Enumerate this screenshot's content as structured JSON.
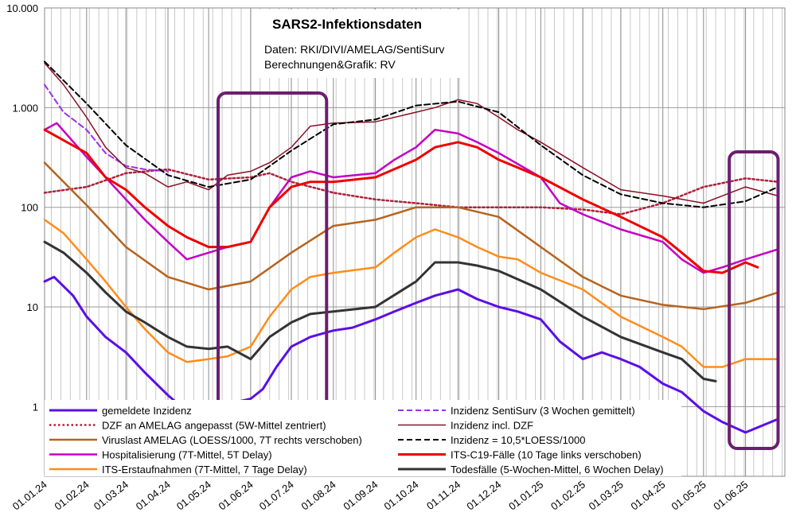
{
  "chart_data": {
    "type": "line",
    "title": "SARS2-Infektionsdaten",
    "subtitle_lines": [
      "Daten: RKI/DIVI/AMELAG/SentiSurv",
      "Berechnungen&Grafik: RV"
    ],
    "y_scale": "log",
    "ylim": [
      0.2,
      10000
    ],
    "y_ticks": [
      1,
      10,
      100,
      1000,
      10000
    ],
    "y_tick_labels": [
      "1",
      "10",
      "100",
      "1.000",
      "10.000"
    ],
    "xlim": [
      "2024-01-01",
      "2025-06-30"
    ],
    "x_ticks": [
      "2024-01-01",
      "2024-02-01",
      "2024-03-01",
      "2024-04-01",
      "2024-05-01",
      "2024-06-01",
      "2024-07-01",
      "2024-08-01",
      "2024-09-01",
      "2024-10-01",
      "2024-11-01",
      "2024-12-01",
      "2025-01-01",
      "2025-02-01",
      "2025-03-01",
      "2025-04-01",
      "2025-05-01",
      "2025-06-01"
    ],
    "x_tick_labels": [
      "01.01.24",
      "01.02.24",
      "01.03.24",
      "01.04.24",
      "01.05.24",
      "01.06.24",
      "01.07.24",
      "01.08.24",
      "01.09.24",
      "01.10.24",
      "01.11.24",
      "01.12.24",
      "01.01.25",
      "01.02.25",
      "01.03.25",
      "01.04.25",
      "01.05.25",
      "01.06.25"
    ],
    "grid": "vertical weekly lines, horizontal at decades",
    "legend_placement": "bottom, inside plot, two columns",
    "highlight_boxes": [
      {
        "x": [
          "2024-05-08",
          "2024-07-27"
        ],
        "y": [
          0.85,
          1400
        ],
        "color": "#6B1E6E"
      },
      {
        "x": [
          "2025-05-20",
          "2025-06-25"
        ],
        "y": [
          0.38,
          360
        ],
        "color": "#6B1E6E"
      }
    ],
    "series": [
      {
        "name": "gemeldete Inzidenz",
        "color": "#5B0FE6",
        "style": "solid",
        "width": 3,
        "x": [
          "2024-01-01",
          "2024-01-08",
          "2024-01-22",
          "2024-02-01",
          "2024-02-15",
          "2024-03-01",
          "2024-03-15",
          "2024-04-01",
          "2024-04-15",
          "2024-05-01",
          "2024-05-10",
          "2024-05-20",
          "2024-06-01",
          "2024-06-10",
          "2024-06-20",
          "2024-07-01",
          "2024-07-15",
          "2024-08-01",
          "2024-08-15",
          "2024-09-01",
          "2024-09-15",
          "2024-10-01",
          "2024-10-15",
          "2024-11-01",
          "2024-11-15",
          "2024-12-01",
          "2024-12-15",
          "2025-01-01",
          "2025-01-15",
          "2025-02-01",
          "2025-02-15",
          "2025-03-01",
          "2025-03-15",
          "2025-04-01",
          "2025-04-15",
          "2025-05-01",
          "2025-05-15",
          "2025-06-01",
          "2025-06-25"
        ],
        "y": [
          18,
          20,
          13,
          8,
          5,
          3.5,
          2.2,
          1.3,
          0.9,
          0.7,
          0.95,
          1.1,
          1.2,
          1.5,
          2.5,
          4,
          5,
          5.8,
          6.2,
          7.5,
          9,
          11,
          13,
          15,
          12,
          10,
          9,
          7.5,
          4.5,
          3,
          3.5,
          3,
          2.5,
          1.7,
          1.4,
          0.9,
          0.7,
          0.55,
          0.75
        ]
      },
      {
        "name": "DZF an AMELAG angepasst (5W-Mittel zentriert)",
        "color": "#B0203A",
        "style": "dotted",
        "width": 2.5,
        "x": [
          "2024-01-01",
          "2024-02-01",
          "2024-03-01",
          "2024-04-01",
          "2024-05-01",
          "2024-06-01",
          "2024-06-15",
          "2024-07-01",
          "2024-08-01",
          "2024-09-01",
          "2024-10-01",
          "2024-11-01",
          "2024-12-01",
          "2025-01-01",
          "2025-02-01",
          "2025-03-01",
          "2025-04-01",
          "2025-05-01",
          "2025-06-01",
          "2025-06-25"
        ],
        "y": [
          140,
          160,
          220,
          240,
          190,
          200,
          220,
          180,
          140,
          120,
          110,
          100,
          100,
          100,
          95,
          85,
          110,
          160,
          195,
          180
        ]
      },
      {
        "name": "Viruslast AMELAG (LOESS/1000, 7T rechts verschoben)",
        "color": "#B7631E",
        "style": "solid",
        "width": 2.5,
        "x": [
          "2024-01-01",
          "2024-02-01",
          "2024-03-01",
          "2024-04-01",
          "2024-05-01",
          "2024-06-01",
          "2024-07-01",
          "2024-08-01",
          "2024-09-01",
          "2024-10-01",
          "2024-11-01",
          "2024-12-01",
          "2025-01-01",
          "2025-02-01",
          "2025-03-01",
          "2025-04-01",
          "2025-05-01",
          "2025-06-01",
          "2025-06-25"
        ],
        "y": [
          280,
          105,
          40,
          20,
          15,
          18,
          35,
          65,
          75,
          100,
          100,
          80,
          40,
          20,
          13,
          10.5,
          9.5,
          11,
          14
        ]
      },
      {
        "name": "Inzidenz SentiSurv (3 Wochen gemittelt)",
        "color": "#9B30F0",
        "style": "dashed",
        "width": 2,
        "x": [
          "2024-01-01",
          "2024-01-15",
          "2024-02-01",
          "2024-02-15",
          "2024-03-01",
          "2024-03-15",
          "2024-04-01"
        ],
        "y": [
          1700,
          900,
          600,
          350,
          260,
          240,
          230
        ]
      },
      {
        "name": "Inzidenz incl. DZF",
        "color": "#8B0F25",
        "style": "solid",
        "width": 1.5,
        "x": [
          "2024-01-01",
          "2024-01-15",
          "2024-02-01",
          "2024-02-15",
          "2024-03-01",
          "2024-03-15",
          "2024-04-01",
          "2024-04-15",
          "2024-05-01",
          "2024-05-15",
          "2024-06-01",
          "2024-06-15",
          "2024-07-01",
          "2024-07-15",
          "2024-08-01",
          "2024-09-01",
          "2024-10-01",
          "2024-10-15",
          "2024-11-01",
          "2024-11-15",
          "2024-12-01",
          "2024-12-15",
          "2025-01-01",
          "2025-02-01",
          "2025-03-01",
          "2025-04-01",
          "2025-05-01",
          "2025-06-01",
          "2025-06-25"
        ],
        "y": [
          2800,
          1700,
          800,
          400,
          250,
          220,
          160,
          180,
          150,
          210,
          230,
          280,
          400,
          650,
          700,
          720,
          900,
          1000,
          1200,
          1100,
          800,
          600,
          450,
          250,
          150,
          130,
          110,
          160,
          130
        ]
      },
      {
        "name": "Inzidenz = 10,5*LOESS/1000",
        "color": "#000000",
        "style": "dashed",
        "width": 2,
        "x": [
          "2024-01-01",
          "2024-02-01",
          "2024-03-01",
          "2024-04-01",
          "2024-05-01",
          "2024-06-01",
          "2024-07-01",
          "2024-08-01",
          "2024-09-01",
          "2024-10-01",
          "2024-11-01",
          "2024-12-01",
          "2025-01-01",
          "2025-02-01",
          "2025-03-01",
          "2025-04-01",
          "2025-05-01",
          "2025-06-01",
          "2025-06-25"
        ],
        "y": [
          2900,
          1100,
          420,
          210,
          160,
          190,
          370,
          680,
          760,
          1050,
          1150,
          900,
          420,
          210,
          135,
          110,
          100,
          115,
          160
        ]
      },
      {
        "name": "Hospitalisierung (7T-Mittel, 5T Delay)",
        "color": "#C400C4",
        "style": "solid",
        "width": 2.5,
        "x": [
          "2024-01-01",
          "2024-01-10",
          "2024-02-01",
          "2024-02-15",
          "2024-03-01",
          "2024-03-15",
          "2024-04-01",
          "2024-04-15",
          "2024-05-01",
          "2024-05-15",
          "2024-06-01",
          "2024-06-15",
          "2024-07-01",
          "2024-07-15",
          "2024-08-01",
          "2024-09-01",
          "2024-09-15",
          "2024-10-01",
          "2024-10-15",
          "2024-11-01",
          "2024-11-15",
          "2024-12-01",
          "2025-01-01",
          "2025-01-15",
          "2025-02-01",
          "2025-03-01",
          "2025-04-01",
          "2025-04-15",
          "2025-05-01",
          "2025-05-15",
          "2025-06-01",
          "2025-06-25"
        ],
        "y": [
          600,
          700,
          320,
          200,
          120,
          75,
          45,
          30,
          35,
          40,
          45,
          100,
          200,
          230,
          200,
          220,
          300,
          400,
          600,
          550,
          450,
          350,
          200,
          110,
          85,
          60,
          45,
          30,
          22,
          25,
          30,
          38
        ]
      },
      {
        "name": "ITS-C19-Fälle (10 Tage links verschoben)",
        "color": "#EE0000",
        "style": "solid",
        "width": 3,
        "x": [
          "2024-01-01",
          "2024-02-01",
          "2024-02-15",
          "2024-03-01",
          "2024-03-15",
          "2024-04-01",
          "2024-04-15",
          "2024-05-01",
          "2024-05-15",
          "2024-06-01",
          "2024-06-15",
          "2024-07-01",
          "2024-07-15",
          "2024-08-01",
          "2024-09-01",
          "2024-10-01",
          "2024-10-15",
          "2024-11-01",
          "2024-11-15",
          "2024-12-01",
          "2024-12-15",
          "2025-01-01",
          "2025-02-01",
          "2025-03-01",
          "2025-04-01",
          "2025-04-15",
          "2025-05-01",
          "2025-05-15",
          "2025-06-01",
          "2025-06-10"
        ],
        "y": [
          600,
          350,
          200,
          150,
          100,
          65,
          50,
          40,
          40,
          45,
          100,
          160,
          180,
          180,
          200,
          300,
          400,
          450,
          400,
          300,
          250,
          200,
          120,
          80,
          50,
          35,
          23,
          22,
          28,
          25
        ]
      },
      {
        "name": "ITS-Erstaufnahmen (7T-Mittel, 7 Tage Delay)",
        "color": "#FF8C1A",
        "style": "solid",
        "width": 2.5,
        "x": [
          "2024-01-01",
          "2024-01-15",
          "2024-02-01",
          "2024-02-15",
          "2024-03-01",
          "2024-03-15",
          "2024-04-01",
          "2024-04-15",
          "2024-05-01",
          "2024-05-15",
          "2024-06-01",
          "2024-06-15",
          "2024-07-01",
          "2024-07-15",
          "2024-08-01",
          "2024-09-01",
          "2024-09-15",
          "2024-10-01",
          "2024-10-15",
          "2024-11-01",
          "2024-11-15",
          "2024-12-01",
          "2024-12-15",
          "2025-01-01",
          "2025-02-01",
          "2025-03-01",
          "2025-04-01",
          "2025-04-15",
          "2025-05-01",
          "2025-05-15",
          "2025-06-01",
          "2025-06-25"
        ],
        "y": [
          75,
          55,
          30,
          18,
          10,
          6,
          3.5,
          2.8,
          3,
          3.2,
          4,
          8,
          15,
          20,
          22,
          25,
          35,
          50,
          60,
          50,
          40,
          32,
          30,
          22,
          15,
          8,
          5,
          4,
          2.5,
          2.5,
          3,
          3
        ]
      },
      {
        "name": "Todesfälle (5-Wochen-Mittel, 6 Wochen Delay)",
        "color": "#333333",
        "style": "solid",
        "width": 3,
        "x": [
          "2024-01-01",
          "2024-01-15",
          "2024-02-01",
          "2024-02-15",
          "2024-03-01",
          "2024-03-15",
          "2024-04-01",
          "2024-04-15",
          "2024-05-01",
          "2024-05-15",
          "2024-06-01",
          "2024-06-15",
          "2024-07-01",
          "2024-07-15",
          "2024-08-01",
          "2024-09-01",
          "2024-10-01",
          "2024-10-15",
          "2024-11-01",
          "2024-11-15",
          "2024-12-01",
          "2025-01-01",
          "2025-02-01",
          "2025-03-01",
          "2025-04-01",
          "2025-04-15",
          "2025-05-01",
          "2025-05-10"
        ],
        "y": [
          45,
          35,
          22,
          14,
          9,
          7,
          5,
          4,
          3.8,
          4,
          3,
          5,
          7,
          8.5,
          9,
          10,
          18,
          28,
          28,
          26,
          23,
          15,
          8,
          5,
          3.5,
          3,
          1.9,
          1.8
        ]
      }
    ]
  }
}
